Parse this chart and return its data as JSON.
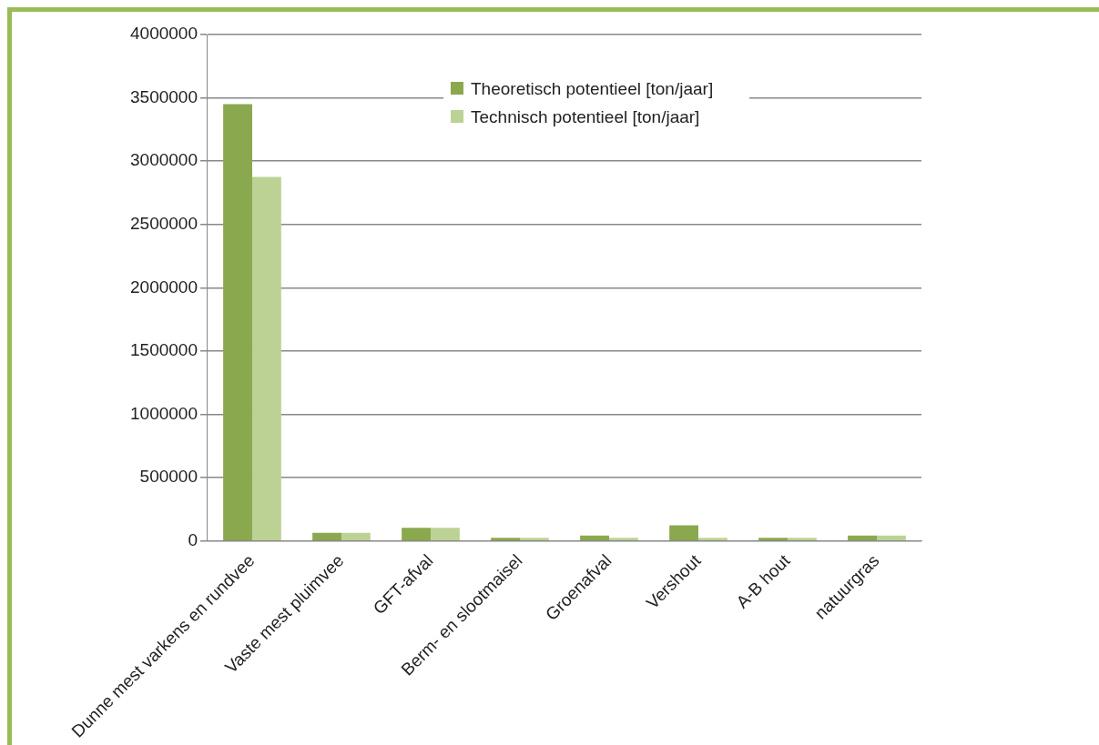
{
  "chart_data": {
    "type": "bar",
    "categories": [
      "Dunne mest varkens en rundvee",
      "Vaste mest pluimvee",
      "GFT-afval",
      "Berm- en slootmaisel",
      "Groenafval",
      "Vershout",
      "A-B hout",
      "natuurgras"
    ],
    "series": [
      {
        "name": "Theoretisch potentieel [ton/jaar]",
        "color": "#8aa84e",
        "values": [
          3450000,
          65000,
          104000,
          24000,
          42000,
          123000,
          24000,
          42000
        ]
      },
      {
        "name": "Technisch potentieel [ton/jaar]",
        "color": "#bcd295",
        "values": [
          2875000,
          65000,
          104000,
          24000,
          24000,
          24000,
          24000,
          42000
        ]
      }
    ],
    "ylim": [
      0,
      4000000
    ],
    "yticks": [
      0,
      500000,
      1000000,
      1500000,
      2000000,
      2500000,
      3000000,
      3500000,
      4000000
    ],
    "grid": "y",
    "legend": "top"
  }
}
